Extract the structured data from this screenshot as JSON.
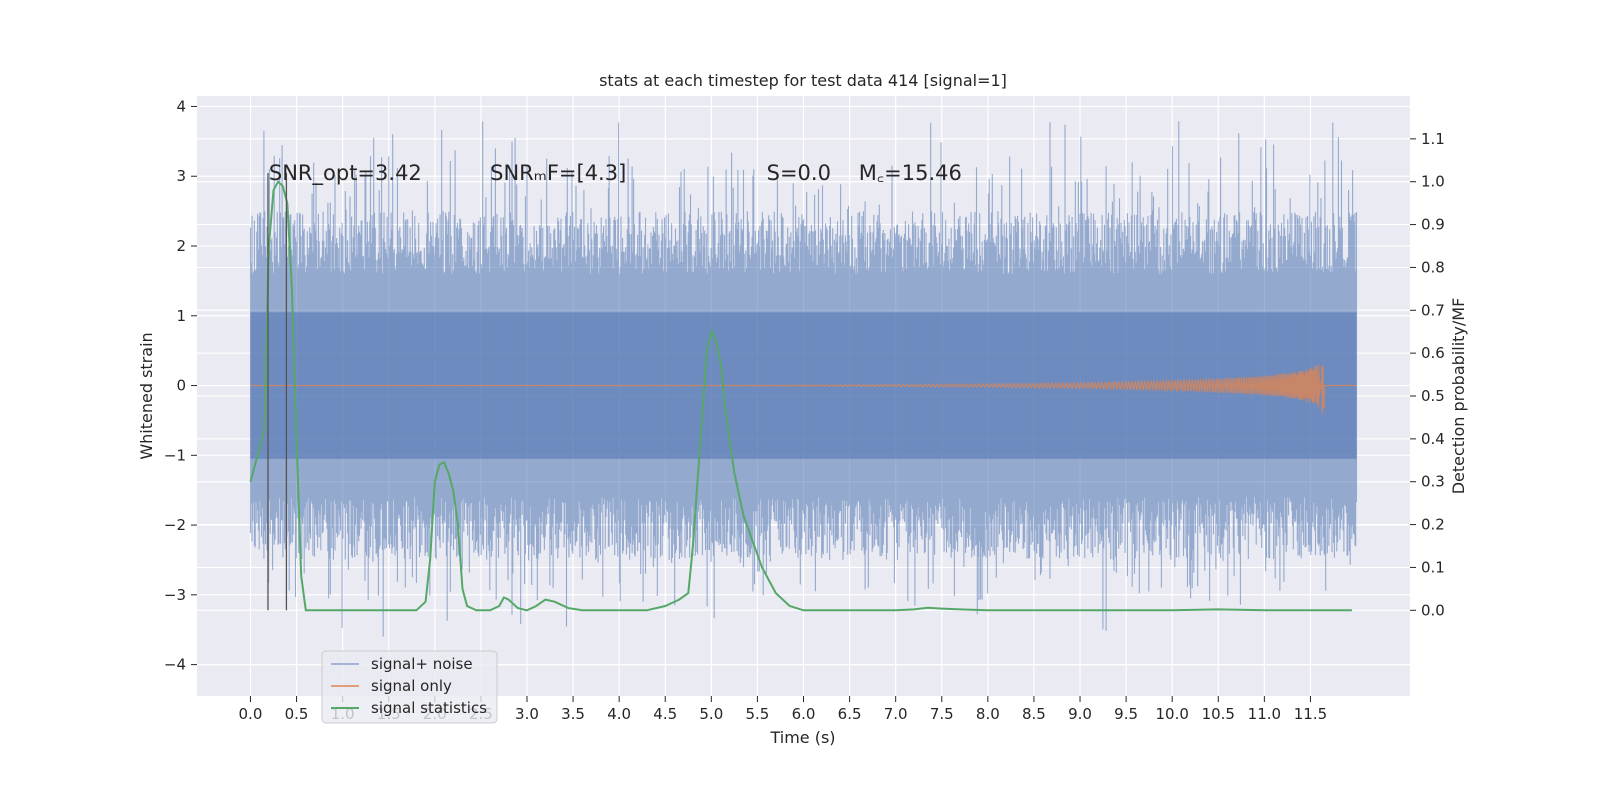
{
  "chart_data": {
    "type": "line",
    "title": "stats at each timestep for test data 414 [signal=1]",
    "xlabel": "Time (s)",
    "ylabel": "Whitened strain",
    "ylabel_right": "Detection probability/MF",
    "xlim": [
      -0.58,
      12.58
    ],
    "ylim": [
      -4.45,
      4.15
    ],
    "ylim_right": [
      -0.2,
      1.2
    ],
    "x_ticks": [
      0.0,
      0.5,
      1.0,
      1.5,
      2.0,
      2.5,
      3.0,
      3.5,
      4.0,
      4.5,
      5.0,
      5.5,
      6.0,
      6.5,
      7.0,
      7.5,
      8.0,
      8.5,
      9.0,
      9.5,
      10.0,
      10.5,
      11.0,
      11.5
    ],
    "x_tick_labels": [
      "0.0",
      "0.5",
      "1.0",
      "1.5",
      "2.0",
      "2.5",
      "3.0",
      "3.5",
      "4.0",
      "4.5",
      "5.0",
      "5.5",
      "6.0",
      "6.5",
      "7.0",
      "7.5",
      "8.0",
      "8.5",
      "9.0",
      "9.5",
      "10.0",
      "10.5",
      "11.0",
      "11.5"
    ],
    "y_ticks": [
      -4,
      -3,
      -2,
      -1,
      0,
      1,
      2,
      3,
      4
    ],
    "y_tick_labels": [
      "−4",
      "−3",
      "−2",
      "−1",
      "0",
      "1",
      "2",
      "3",
      "4"
    ],
    "y_right_ticks": [
      0.0,
      0.1,
      0.2,
      0.3,
      0.4,
      0.5,
      0.6,
      0.7,
      0.8,
      0.9,
      1.0,
      1.1
    ],
    "y_right_tick_labels": [
      "0.0",
      "0.1",
      "0.2",
      "0.3",
      "0.4",
      "0.5",
      "0.6",
      "0.7",
      "0.8",
      "0.9",
      "1.0",
      "1.1"
    ],
    "grid": true,
    "legend_position": "lower-left",
    "annotations": [
      {
        "text": "SNR_opt=3.42",
        "x": 0.2,
        "y": 3.0
      },
      {
        "text": "SNR_MF=[4.3]",
        "x": 2.6,
        "y": 3.0,
        "display": "SNRₘF=[4.3]"
      },
      {
        "text": "S=0.0",
        "x": 5.6,
        "y": 3.0
      },
      {
        "text": "M_c=15.46",
        "x": 6.6,
        "y": 3.0,
        "display": "M꜀=15.46"
      }
    ],
    "vlines": [
      0.19,
      0.39
    ],
    "series": [
      {
        "name": "signal+ noise",
        "color": "#4c72b0",
        "alpha": 0.5,
        "kind": "noise",
        "x_range": [
          0.0,
          12.0
        ],
        "envelope": [
          -2.7,
          3.8
        ],
        "core": [
          -1.0,
          1.0
        ]
      },
      {
        "name": "signal only",
        "color": "#dd8452",
        "kind": "chirp",
        "chirp_end": 11.65,
        "chirp_peak": 0.55,
        "x_range": [
          0.0,
          12.0
        ]
      },
      {
        "name": "signal statistics",
        "color": "#55a868",
        "axis": "right",
        "x": [
          0.0,
          0.1,
          0.15,
          0.2,
          0.25,
          0.3,
          0.35,
          0.4,
          0.45,
          0.5,
          0.55,
          0.6,
          0.7,
          1.0,
          1.5,
          1.8,
          1.9,
          1.95,
          2.0,
          2.05,
          2.1,
          2.15,
          2.2,
          2.25,
          2.3,
          2.35,
          2.45,
          2.6,
          2.7,
          2.75,
          2.8,
          2.9,
          3.0,
          3.1,
          3.2,
          3.3,
          3.45,
          3.6,
          4.0,
          4.3,
          4.5,
          4.65,
          4.75,
          4.8,
          4.85,
          4.9,
          4.95,
          5.0,
          5.05,
          5.1,
          5.15,
          5.25,
          5.35,
          5.45,
          5.55,
          5.7,
          5.85,
          6.0,
          7.0,
          7.2,
          7.35,
          7.5,
          7.7,
          8.0,
          9.0,
          10.0,
          10.5,
          11.0,
          11.5,
          11.95
        ],
        "values": [
          0.3,
          0.38,
          0.42,
          0.85,
          0.98,
          1.0,
          0.99,
          0.95,
          0.75,
          0.4,
          0.08,
          0.0,
          0.0,
          0.0,
          0.0,
          0.0,
          0.02,
          0.12,
          0.3,
          0.34,
          0.345,
          0.32,
          0.28,
          0.2,
          0.05,
          0.01,
          0.0,
          0.0,
          0.01,
          0.03,
          0.025,
          0.005,
          0.0,
          0.01,
          0.025,
          0.02,
          0.005,
          0.0,
          0.0,
          0.0,
          0.01,
          0.025,
          0.04,
          0.15,
          0.3,
          0.45,
          0.6,
          0.65,
          0.63,
          0.58,
          0.47,
          0.32,
          0.22,
          0.16,
          0.1,
          0.04,
          0.01,
          0.0,
          0.0,
          0.002,
          0.006,
          0.004,
          0.002,
          0.0,
          0.0,
          0.0,
          0.002,
          0.0,
          0.0,
          0.0
        ]
      }
    ]
  }
}
